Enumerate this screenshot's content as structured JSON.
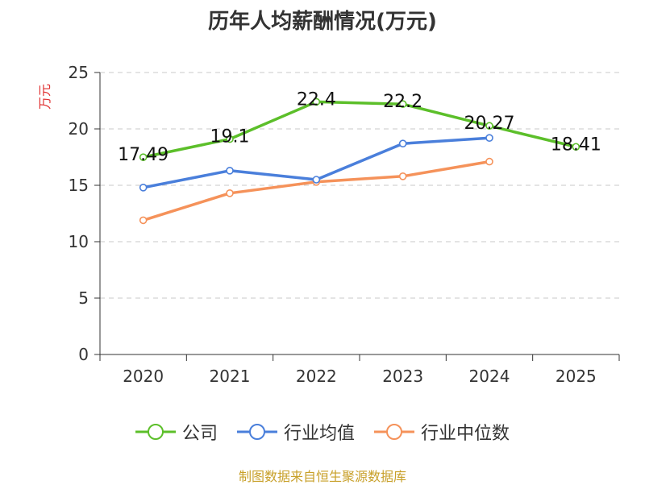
{
  "chart_data": {
    "type": "line",
    "title": "历年人均薪酬情况(万元)",
    "ylabel": "万元",
    "xlabel": "",
    "ylim": [
      0,
      25
    ],
    "yticks": [
      0,
      5,
      10,
      15,
      20,
      25
    ],
    "categories": [
      "2020",
      "2021",
      "2022",
      "2023",
      "2024",
      "2025"
    ],
    "series": [
      {
        "name": "公司",
        "color": "#5cbf2a",
        "values": [
          17.49,
          19.1,
          22.4,
          22.2,
          20.27,
          18.41
        ],
        "labels": [
          "17.49",
          "19.1",
          "22.4",
          "22.2",
          "20.27",
          "18.41"
        ]
      },
      {
        "name": "行业均值",
        "color": "#4a7fdb",
        "values": [
          14.8,
          16.3,
          15.5,
          18.7,
          19.2,
          null
        ]
      },
      {
        "name": "行业中位数",
        "color": "#f5925a",
        "values": [
          11.9,
          14.3,
          15.3,
          15.8,
          17.1,
          null
        ]
      }
    ],
    "legend_position": "bottom",
    "grid": true
  },
  "footer": {
    "source": "制图数据来自恒生聚源数据库"
  }
}
